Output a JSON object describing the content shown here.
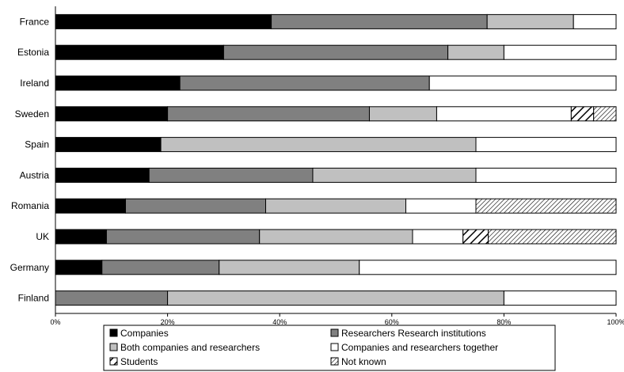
{
  "chart_data": {
    "type": "bar",
    "orientation": "horizontal",
    "stacked": true,
    "categories": [
      "France",
      "Estonia",
      "Ireland",
      "Sweden",
      "Spain",
      "Austria",
      "Romania",
      "UK",
      "Germany",
      "Finland"
    ],
    "series": [
      {
        "name": "Companies",
        "color": "#000000",
        "pattern": "solid",
        "values": [
          38.5,
          30,
          22.2,
          20,
          18.8,
          16.7,
          12.5,
          9.1,
          8.3,
          0
        ]
      },
      {
        "name": "Researchers Research institutions",
        "color": "#808080",
        "pattern": "solid",
        "values": [
          38.5,
          40,
          44.5,
          36,
          0,
          29.2,
          25,
          27.3,
          20.9,
          20
        ]
      },
      {
        "name": "Both companies and researchers",
        "color": "#c0c0c0",
        "pattern": "solid",
        "values": [
          15.4,
          10,
          0,
          12,
          56.2,
          29.1,
          25,
          27.3,
          25,
          60
        ]
      },
      {
        "name": "Companies and researchers together",
        "color": "#ffffff",
        "pattern": "solid",
        "values": [
          7.6,
          20,
          33.3,
          24,
          25,
          25,
          12.5,
          9.0,
          45.8,
          20
        ]
      },
      {
        "name": "Students",
        "color": "#ffffff",
        "pattern": "wide-hatch",
        "values": [
          0,
          0,
          0,
          4,
          0,
          0,
          0,
          4.5,
          0,
          0
        ]
      },
      {
        "name": "Not known",
        "color": "#ffffff",
        "pattern": "fine-hatch",
        "values": [
          0,
          0,
          0,
          4,
          0,
          0,
          25,
          22.8,
          0,
          0
        ]
      }
    ],
    "xlim": [
      0,
      100
    ],
    "xticks": [
      "0%",
      "20%",
      "40%",
      "60%",
      "80%",
      "100%"
    ],
    "grid": false,
    "legend_position": "bottom"
  }
}
